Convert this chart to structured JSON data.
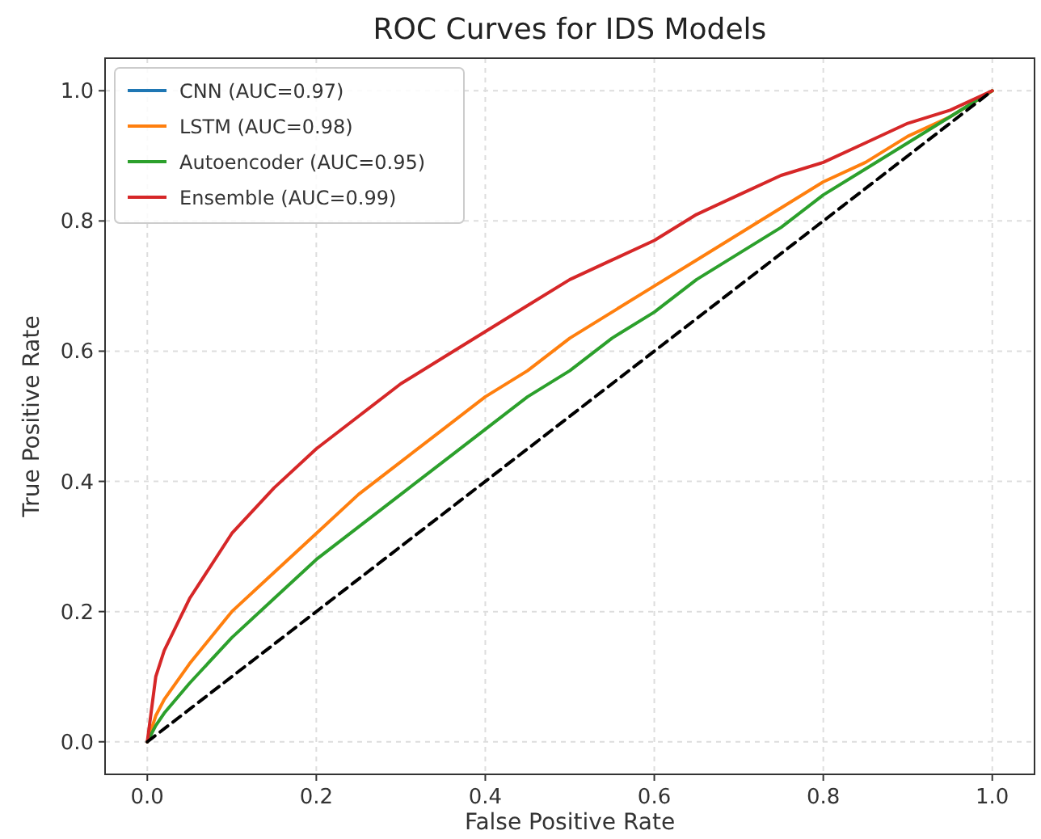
{
  "chart_data": {
    "type": "line",
    "title": "ROC Curves for IDS Models",
    "xlabel": "False Positive Rate",
    "ylabel": "True Positive Rate",
    "xlim": [
      -0.05,
      1.05
    ],
    "ylim": [
      -0.05,
      1.05
    ],
    "xticks": [
      {
        "value": 0,
        "label": "0.0"
      },
      {
        "value": 0.2,
        "label": "0.2"
      },
      {
        "value": 0.4,
        "label": "0.4"
      },
      {
        "value": 0.6,
        "label": "0.6"
      },
      {
        "value": 0.8,
        "label": "0.8"
      },
      {
        "value": 1,
        "label": "1.0"
      }
    ],
    "yticks": [
      {
        "value": 0,
        "label": "0.0"
      },
      {
        "value": 0.2,
        "label": "0.2"
      },
      {
        "value": 0.4,
        "label": "0.4"
      },
      {
        "value": 0.6,
        "label": "0.6"
      },
      {
        "value": 0.8,
        "label": "0.8"
      },
      {
        "value": 1,
        "label": "1.0"
      }
    ],
    "grid": true,
    "legend": "top left",
    "marker": "none",
    "x": [
      0,
      0.01,
      0.02,
      0.05,
      0.1,
      0.15,
      0.2,
      0.25,
      0.3,
      0.35,
      0.4,
      0.45,
      0.5,
      0.55,
      0.6,
      0.65,
      0.7,
      0.75,
      0.8,
      0.85,
      0.9,
      0.95,
      1
    ],
    "series": [
      {
        "name": "CNN (AUC=0.97)",
        "color": "#1f77b4",
        "values": [
          null,
          null,
          null,
          null,
          null,
          null,
          null,
          null,
          null,
          null,
          null,
          null,
          null,
          null,
          null,
          null,
          null,
          null,
          null,
          null,
          null,
          null,
          null
        ]
      },
      {
        "name": "LSTM (AUC=0.98)",
        "color": "#ff7f0e",
        "values": [
          0,
          0.04,
          0.065,
          0.12,
          0.2,
          0.26,
          0.32,
          0.38,
          0.43,
          0.48,
          0.53,
          0.57,
          0.62,
          0.66,
          0.7,
          0.74,
          0.78,
          0.82,
          0.86,
          0.89,
          0.93,
          0.96,
          1
        ]
      },
      {
        "name": "Autoencoder (AUC=0.95)",
        "color": "#2ca02c",
        "values": [
          0,
          0.025,
          0.044,
          0.09,
          0.16,
          0.22,
          0.28,
          0.33,
          0.38,
          0.43,
          0.48,
          0.53,
          0.57,
          0.62,
          0.66,
          0.71,
          0.75,
          0.79,
          0.84,
          0.88,
          0.92,
          0.96,
          1
        ]
      },
      {
        "name": "Ensemble (AUC=0.99)",
        "color": "#d62728",
        "values": [
          0,
          0.1,
          0.14,
          0.22,
          0.32,
          0.39,
          0.45,
          0.5,
          0.55,
          0.59,
          0.63,
          0.67,
          0.71,
          0.74,
          0.77,
          0.81,
          0.84,
          0.87,
          0.89,
          0.92,
          0.95,
          0.97,
          1
        ]
      },
      {
        "type": "line",
        "color": "#000000",
        "line_style": "dashed",
        "x": [
          0,
          1
        ],
        "values": [
          0,
          1
        ]
      }
    ]
  }
}
